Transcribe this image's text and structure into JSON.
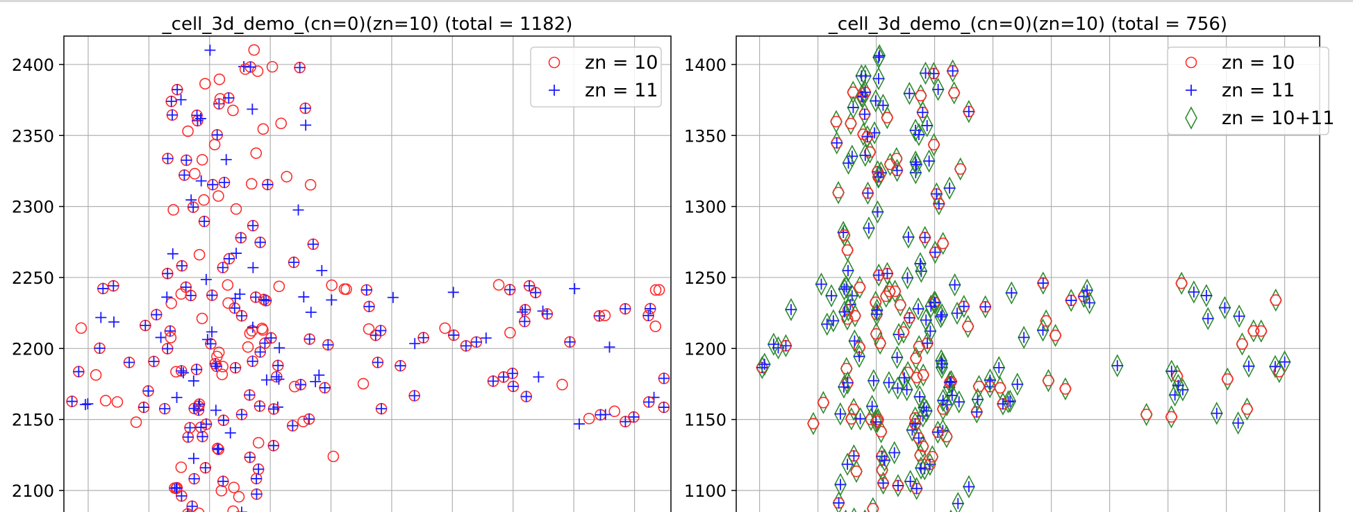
{
  "chart_data": [
    {
      "type": "scatter",
      "title": "_cell_3d_demo_(cn=0)(zn=10) (total = 1182)",
      "xlabel": "",
      "ylabel": "",
      "ylim": [
        2078,
        2420
      ],
      "xlim": [
        0,
        10
      ],
      "y_ticks": [
        2100,
        2150,
        2200,
        2250,
        2300,
        2350,
        2400
      ],
      "y_tick_labels": [
        "2100",
        "2150",
        "2200",
        "2250",
        "2300",
        "2350",
        "2400"
      ],
      "x_grid": [
        0.4,
        1.4,
        2.4,
        3.4,
        4.4,
        5.4,
        6.4,
        7.4,
        8.4,
        9.4
      ],
      "grid": true,
      "legend_position": "top-right",
      "series": [
        {
          "name": "zn = 10",
          "marker": "circle",
          "color": "#ff2a2a"
        },
        {
          "name": "zn = 11",
          "marker": "plus",
          "color": "#1a1aff"
        }
      ]
    },
    {
      "type": "scatter",
      "title": "_cell_3d_demo_(cn=0)(zn=10) (total = 756)",
      "xlabel": "",
      "ylabel": "",
      "ylim": [
        1078,
        1420
      ],
      "xlim": [
        0,
        10
      ],
      "y_ticks": [
        1100,
        1150,
        1200,
        1250,
        1300,
        1350,
        1400
      ],
      "y_tick_labels": [
        "1100",
        "1150",
        "1200",
        "1250",
        "1300",
        "1350",
        "1400"
      ],
      "x_grid": [
        0.4,
        1.4,
        2.4,
        3.4,
        4.4,
        5.4,
        6.4,
        7.4,
        8.4,
        9.4
      ],
      "grid": true,
      "legend_position": "top-right",
      "series": [
        {
          "name": "zn = 10",
          "marker": "circle",
          "color": "#ff2a2a"
        },
        {
          "name": "zn = 11",
          "marker": "plus",
          "color": "#1a1aff"
        },
        {
          "name": "zn = 10+11",
          "marker": "diamond",
          "color": "#2e8b2e"
        }
      ]
    }
  ]
}
